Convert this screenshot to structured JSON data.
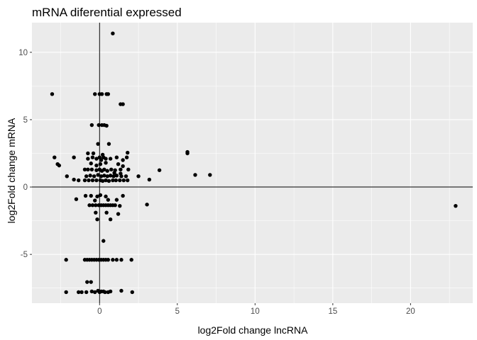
{
  "chart_data": {
    "type": "scatter",
    "title": "mRNA diferential expressed",
    "xlabel": "log2Fold change lncRNA",
    "ylabel": "log2Fold change mRNA",
    "xlim": [
      -4.35,
      24.0
    ],
    "ylim": [
      -8.62,
      12.2
    ],
    "x_ticks": [
      0,
      5,
      10,
      15,
      20
    ],
    "x_tick_labels": [
      "0",
      "5",
      "10",
      "15",
      "20"
    ],
    "y_ticks": [
      -5,
      0,
      5,
      10
    ],
    "y_tick_labels": [
      "-5",
      "0",
      "5",
      "10"
    ],
    "reference_lines": {
      "vertical_x": 0,
      "horizontal_y": 0
    },
    "grid": true,
    "legend": "none",
    "colors": {
      "panel_background": "#ebebeb",
      "grid_major": "#ffffff",
      "points": "#000000",
      "reference_lines": "#000000",
      "tick_labels": "#4d4d4d"
    },
    "points": [
      {
        "x": 0.85,
        "y": 11.4
      },
      {
        "x": -3.05,
        "y": 6.9
      },
      {
        "x": -0.3,
        "y": 6.9
      },
      {
        "x": 0.0,
        "y": 6.9
      },
      {
        "x": 0.15,
        "y": 6.9
      },
      {
        "x": 0.45,
        "y": 6.9
      },
      {
        "x": 0.55,
        "y": 6.9
      },
      {
        "x": 1.35,
        "y": 6.15
      },
      {
        "x": 1.5,
        "y": 6.15
      },
      {
        "x": -0.5,
        "y": 4.6
      },
      {
        "x": -0.05,
        "y": 4.6
      },
      {
        "x": 0.15,
        "y": 4.6
      },
      {
        "x": 0.3,
        "y": 4.6
      },
      {
        "x": 0.45,
        "y": 4.55
      },
      {
        "x": -0.1,
        "y": 3.2
      },
      {
        "x": 0.6,
        "y": 3.2
      },
      {
        "x": 5.65,
        "y": 2.6
      },
      {
        "x": 5.65,
        "y": 2.5
      },
      {
        "x": -0.75,
        "y": 2.5
      },
      {
        "x": -0.4,
        "y": 2.5
      },
      {
        "x": 1.8,
        "y": 2.55
      },
      {
        "x": 0.2,
        "y": 2.4
      },
      {
        "x": -2.9,
        "y": 2.2
      },
      {
        "x": -1.65,
        "y": 2.2
      },
      {
        "x": -0.75,
        "y": 2.1
      },
      {
        "x": -0.45,
        "y": 2.2
      },
      {
        "x": -0.2,
        "y": 2.1
      },
      {
        "x": 0.0,
        "y": 2.2
      },
      {
        "x": 0.1,
        "y": 2.0
      },
      {
        "x": 0.25,
        "y": 2.2
      },
      {
        "x": 0.4,
        "y": 2.1
      },
      {
        "x": 0.7,
        "y": 2.1
      },
      {
        "x": 1.1,
        "y": 2.2
      },
      {
        "x": 1.5,
        "y": 2.0
      },
      {
        "x": 1.75,
        "y": 2.2
      },
      {
        "x": -2.7,
        "y": 1.7
      },
      {
        "x": -2.6,
        "y": 1.6
      },
      {
        "x": -0.55,
        "y": 1.75
      },
      {
        "x": -0.2,
        "y": 1.6
      },
      {
        "x": 0.05,
        "y": 1.7
      },
      {
        "x": 0.4,
        "y": 1.8
      },
      {
        "x": 1.2,
        "y": 1.7
      },
      {
        "x": 1.5,
        "y": 1.55
      },
      {
        "x": 3.85,
        "y": 1.25
      },
      {
        "x": -0.95,
        "y": 1.3
      },
      {
        "x": -0.75,
        "y": 1.3
      },
      {
        "x": -0.5,
        "y": 1.3
      },
      {
        "x": -0.2,
        "y": 1.25
      },
      {
        "x": 0.0,
        "y": 1.3
      },
      {
        "x": 0.15,
        "y": 1.2
      },
      {
        "x": 0.3,
        "y": 1.3
      },
      {
        "x": 0.5,
        "y": 1.2
      },
      {
        "x": 0.75,
        "y": 1.3
      },
      {
        "x": 1.0,
        "y": 1.25
      },
      {
        "x": 1.35,
        "y": 1.3
      },
      {
        "x": 1.85,
        "y": 1.3
      },
      {
        "x": 0.95,
        "y": 1.05
      },
      {
        "x": 1.35,
        "y": 1.0
      },
      {
        "x": 6.15,
        "y": 0.9
      },
      {
        "x": 7.1,
        "y": 0.9
      },
      {
        "x": 2.5,
        "y": 0.8
      },
      {
        "x": -2.1,
        "y": 0.8
      },
      {
        "x": -0.85,
        "y": 0.8
      },
      {
        "x": -0.6,
        "y": 0.85
      },
      {
        "x": -0.35,
        "y": 0.8
      },
      {
        "x": -0.1,
        "y": 0.9
      },
      {
        "x": 0.1,
        "y": 0.8
      },
      {
        "x": 0.3,
        "y": 0.85
      },
      {
        "x": 0.5,
        "y": 0.8
      },
      {
        "x": 0.7,
        "y": 0.85
      },
      {
        "x": 0.9,
        "y": 0.8
      },
      {
        "x": 1.1,
        "y": 0.85
      },
      {
        "x": 1.4,
        "y": 0.8
      },
      {
        "x": 1.7,
        "y": 0.8
      },
      {
        "x": 3.2,
        "y": 0.55
      },
      {
        "x": -1.65,
        "y": 0.55
      },
      {
        "x": -1.35,
        "y": 0.5
      },
      {
        "x": -0.95,
        "y": 0.5
      },
      {
        "x": -0.7,
        "y": 0.5
      },
      {
        "x": -0.45,
        "y": 0.5
      },
      {
        "x": -0.2,
        "y": 0.5
      },
      {
        "x": 0.05,
        "y": 0.5
      },
      {
        "x": 0.2,
        "y": 0.45
      },
      {
        "x": 0.4,
        "y": 0.5
      },
      {
        "x": 0.6,
        "y": 0.45
      },
      {
        "x": 0.85,
        "y": 0.5
      },
      {
        "x": 1.05,
        "y": 0.5
      },
      {
        "x": 1.3,
        "y": 0.5
      },
      {
        "x": 1.55,
        "y": 0.5
      },
      {
        "x": 1.8,
        "y": 0.5
      },
      {
        "x": -0.9,
        "y": -0.65
      },
      {
        "x": -0.55,
        "y": -0.65
      },
      {
        "x": -0.15,
        "y": -0.7
      },
      {
        "x": 0.05,
        "y": -0.6
      },
      {
        "x": 0.4,
        "y": -0.7
      },
      {
        "x": 1.5,
        "y": -0.65
      },
      {
        "x": -1.5,
        "y": -0.9
      },
      {
        "x": -0.3,
        "y": -1.0
      },
      {
        "x": 0.55,
        "y": -0.95
      },
      {
        "x": 1.1,
        "y": -0.95
      },
      {
        "x": 3.05,
        "y": -1.3
      },
      {
        "x": 22.9,
        "y": -1.4
      },
      {
        "x": -0.65,
        "y": -1.35
      },
      {
        "x": -0.45,
        "y": -1.35
      },
      {
        "x": -0.25,
        "y": -1.35
      },
      {
        "x": -0.05,
        "y": -1.35
      },
      {
        "x": 0.1,
        "y": -1.35
      },
      {
        "x": 0.25,
        "y": -1.35
      },
      {
        "x": 0.4,
        "y": -1.35
      },
      {
        "x": 0.55,
        "y": -1.35
      },
      {
        "x": 0.7,
        "y": -1.35
      },
      {
        "x": 0.85,
        "y": -1.35
      },
      {
        "x": 1.0,
        "y": -1.35
      },
      {
        "x": 1.3,
        "y": -1.4
      },
      {
        "x": -0.25,
        "y": -1.9
      },
      {
        "x": 0.45,
        "y": -1.9
      },
      {
        "x": 1.2,
        "y": -2.0
      },
      {
        "x": -0.15,
        "y": -2.4
      },
      {
        "x": 0.7,
        "y": -2.4
      },
      {
        "x": 0.25,
        "y": -4.0
      },
      {
        "x": -2.15,
        "y": -5.4
      },
      {
        "x": -0.95,
        "y": -5.4
      },
      {
        "x": -0.8,
        "y": -5.4
      },
      {
        "x": -0.65,
        "y": -5.4
      },
      {
        "x": -0.5,
        "y": -5.4
      },
      {
        "x": -0.35,
        "y": -5.4
      },
      {
        "x": -0.2,
        "y": -5.4
      },
      {
        "x": -0.05,
        "y": -5.4
      },
      {
        "x": 0.1,
        "y": -5.4
      },
      {
        "x": 0.25,
        "y": -5.4
      },
      {
        "x": 0.4,
        "y": -5.4
      },
      {
        "x": 0.55,
        "y": -5.4
      },
      {
        "x": 0.85,
        "y": -5.4
      },
      {
        "x": 1.1,
        "y": -5.4
      },
      {
        "x": 1.4,
        "y": -5.4
      },
      {
        "x": 2.05,
        "y": -5.4
      },
      {
        "x": -0.8,
        "y": -7.05
      },
      {
        "x": -0.55,
        "y": -7.05
      },
      {
        "x": -2.15,
        "y": -7.8
      },
      {
        "x": -1.35,
        "y": -7.8
      },
      {
        "x": -1.15,
        "y": -7.8
      },
      {
        "x": -0.85,
        "y": -7.8
      },
      {
        "x": -0.5,
        "y": -7.75
      },
      {
        "x": -0.3,
        "y": -7.8
      },
      {
        "x": -0.1,
        "y": -7.7
      },
      {
        "x": 0.0,
        "y": -7.8
      },
      {
        "x": 0.1,
        "y": -7.75
      },
      {
        "x": 0.25,
        "y": -7.75
      },
      {
        "x": 0.35,
        "y": -7.8
      },
      {
        "x": 0.55,
        "y": -7.8
      },
      {
        "x": 0.7,
        "y": -7.75
      },
      {
        "x": 1.4,
        "y": -7.7
      },
      {
        "x": 2.1,
        "y": -7.8
      }
    ]
  }
}
